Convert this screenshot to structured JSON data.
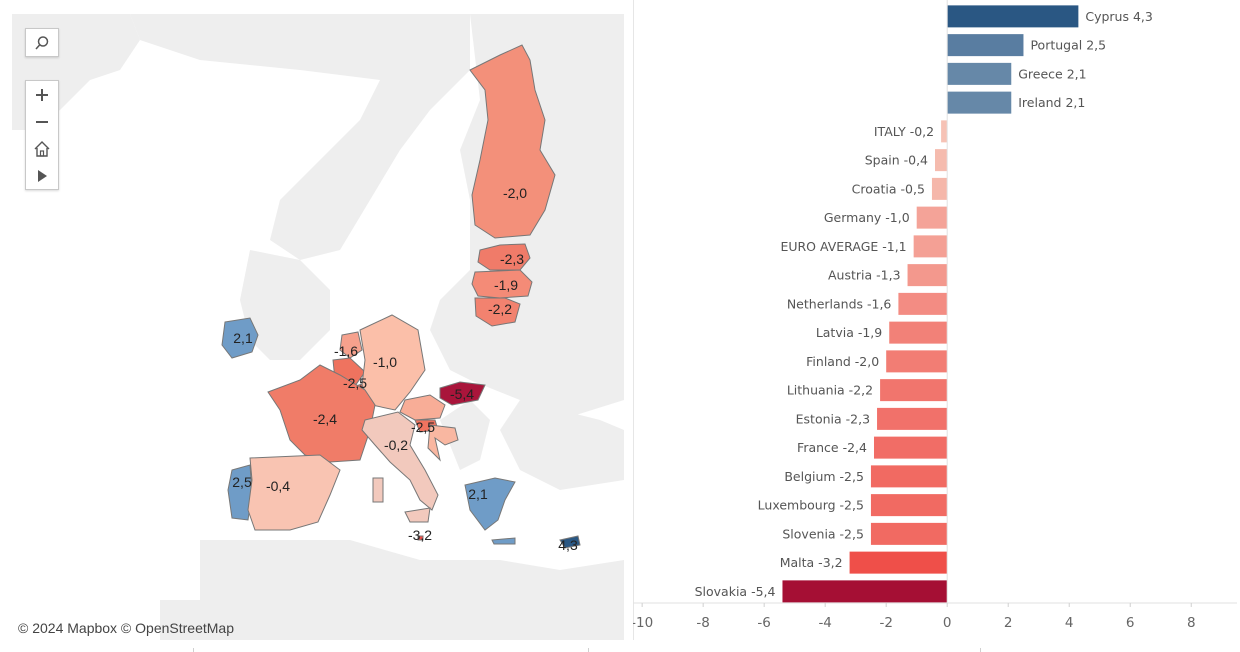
{
  "map": {
    "attribution": "© 2024 Mapbox  © OpenStreetMap",
    "controls": {
      "search_icon": "magnifier-icon",
      "zoom_in_icon": "plus-icon",
      "zoom_out_icon": "minus-icon",
      "home_icon": "home-icon",
      "play_icon": "play-icon"
    },
    "labels": [
      {
        "country": "Finland",
        "text": "-2,0"
      },
      {
        "country": "Estonia",
        "text": "-2,3"
      },
      {
        "country": "Latvia",
        "text": "-1,9"
      },
      {
        "country": "Lithuania",
        "text": "-2,2"
      },
      {
        "country": "Ireland",
        "text": "2,1"
      },
      {
        "country": "Netherlands",
        "text": "-1,6"
      },
      {
        "country": "Germany",
        "text": "-1,0"
      },
      {
        "country": "Belgium",
        "text": "-2,5"
      },
      {
        "country": "Slovakia",
        "text": "-5,4"
      },
      {
        "country": "France",
        "text": "-2,4"
      },
      {
        "country": "Slovenia",
        "text": "-2,5"
      },
      {
        "country": "Italy",
        "text": "-0,2"
      },
      {
        "country": "Portugal",
        "text": "2,5"
      },
      {
        "country": "Spain",
        "text": "-0,4"
      },
      {
        "country": "Greece",
        "text": "2,1"
      },
      {
        "country": "Malta",
        "text": "-3,2"
      },
      {
        "country": "Cyprus",
        "text": "4,3"
      }
    ]
  },
  "chart_data": {
    "type": "bar",
    "orientation": "horizontal",
    "categories": [
      "Cyprus",
      "Portugal",
      "Greece",
      "Ireland",
      "ITALY",
      "Spain",
      "Croatia",
      "Germany",
      "EURO AVERAGE",
      "Austria",
      "Netherlands",
      "Latvia",
      "Finland",
      "Lithuania",
      "Estonia",
      "France",
      "Belgium",
      "Luxembourg",
      "Slovenia",
      "Malta",
      "Slovakia"
    ],
    "bar_labels": [
      "Cyprus 4,3",
      "Portugal 2,5",
      "Greece 2,1",
      "Ireland 2,1",
      "ITALY -0,2",
      "Spain -0,4",
      "Croatia -0,5",
      "Germany -1,0",
      "EURO AVERAGE -1,1",
      "Austria -1,3",
      "Netherlands -1,6",
      "Latvia -1,9",
      "Finland -2,0",
      "Lithuania -2,2",
      "Estonia -2,3",
      "France -2,4",
      "Belgium -2,5",
      "Luxembourg -2,5",
      "Slovenia -2,5",
      "Malta -3,2",
      "Slovakia -5,4"
    ],
    "values": [
      4.3,
      2.5,
      2.1,
      2.1,
      -0.2,
      -0.4,
      -0.5,
      -1.0,
      -1.1,
      -1.3,
      -1.6,
      -1.9,
      -2.0,
      -2.2,
      -2.3,
      -2.4,
      -2.5,
      -2.5,
      -2.5,
      -3.2,
      -5.4
    ],
    "xlim": [
      -10.3,
      9.5
    ],
    "xticks": [
      -10,
      -8,
      -6,
      -4,
      -2,
      0,
      2,
      4,
      6,
      8
    ],
    "xtick_labels": [
      "-10",
      "-8",
      "-6",
      "-4",
      "-2",
      "0",
      "2",
      "4",
      "6",
      "8"
    ],
    "color_scale": {
      "min": -5.4,
      "max": 4.3,
      "negative_max": "#a50f34",
      "positive_max": "#2a5783"
    },
    "grid": false,
    "title": "",
    "xlabel": "",
    "ylabel": ""
  }
}
